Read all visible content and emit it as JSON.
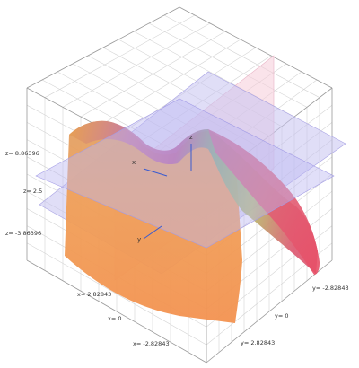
{
  "chart_data": {
    "type": "surface",
    "axes": {
      "x": {
        "name": "x",
        "ticks": [
          "x= 2.82843",
          "x= 0",
          "x= -2.82843"
        ],
        "range": [
          -2.82843,
          2.82843
        ]
      },
      "y": {
        "name": "y",
        "ticks": [
          "y= -2.82843",
          "y= 0",
          "y= 2.82843"
        ],
        "range": [
          -2.82843,
          2.82843
        ]
      },
      "z": {
        "name": "z",
        "ticks": [
          "z= 8.86396",
          "z= 2.5",
          "z= -3.86396"
        ],
        "range": [
          -3.86396,
          8.86396
        ]
      }
    },
    "grid": true,
    "surfaces": [
      {
        "kind": "curved-sheet",
        "color_from": "#f5a04a",
        "color_to": "#c24a9a"
      },
      {
        "kind": "horizontal-plane",
        "color": "#b8b2f0"
      },
      {
        "kind": "tilted-plane",
        "color": "#c2beee"
      },
      {
        "kind": "vertical-plane",
        "color": "#f6ccd8"
      }
    ]
  }
}
